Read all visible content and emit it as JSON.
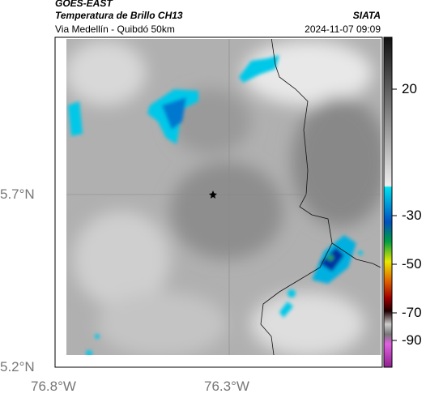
{
  "header": {
    "source": "GOES-EAST",
    "product": "Temperatura de Brillo CH13",
    "agency": "SIATA",
    "route": "Via Medellín - Quibdó 50km",
    "timestamp": "2024-11-07 09:09"
  },
  "axes": {
    "lat_labels": [
      "5.7°N",
      "5.2°N"
    ],
    "lon_labels": [
      "76.8°W",
      "76.3°W"
    ]
  },
  "colorbar": {
    "ticks": [
      "20",
      "-30",
      "-50",
      "-70",
      "-90"
    ]
  }
}
